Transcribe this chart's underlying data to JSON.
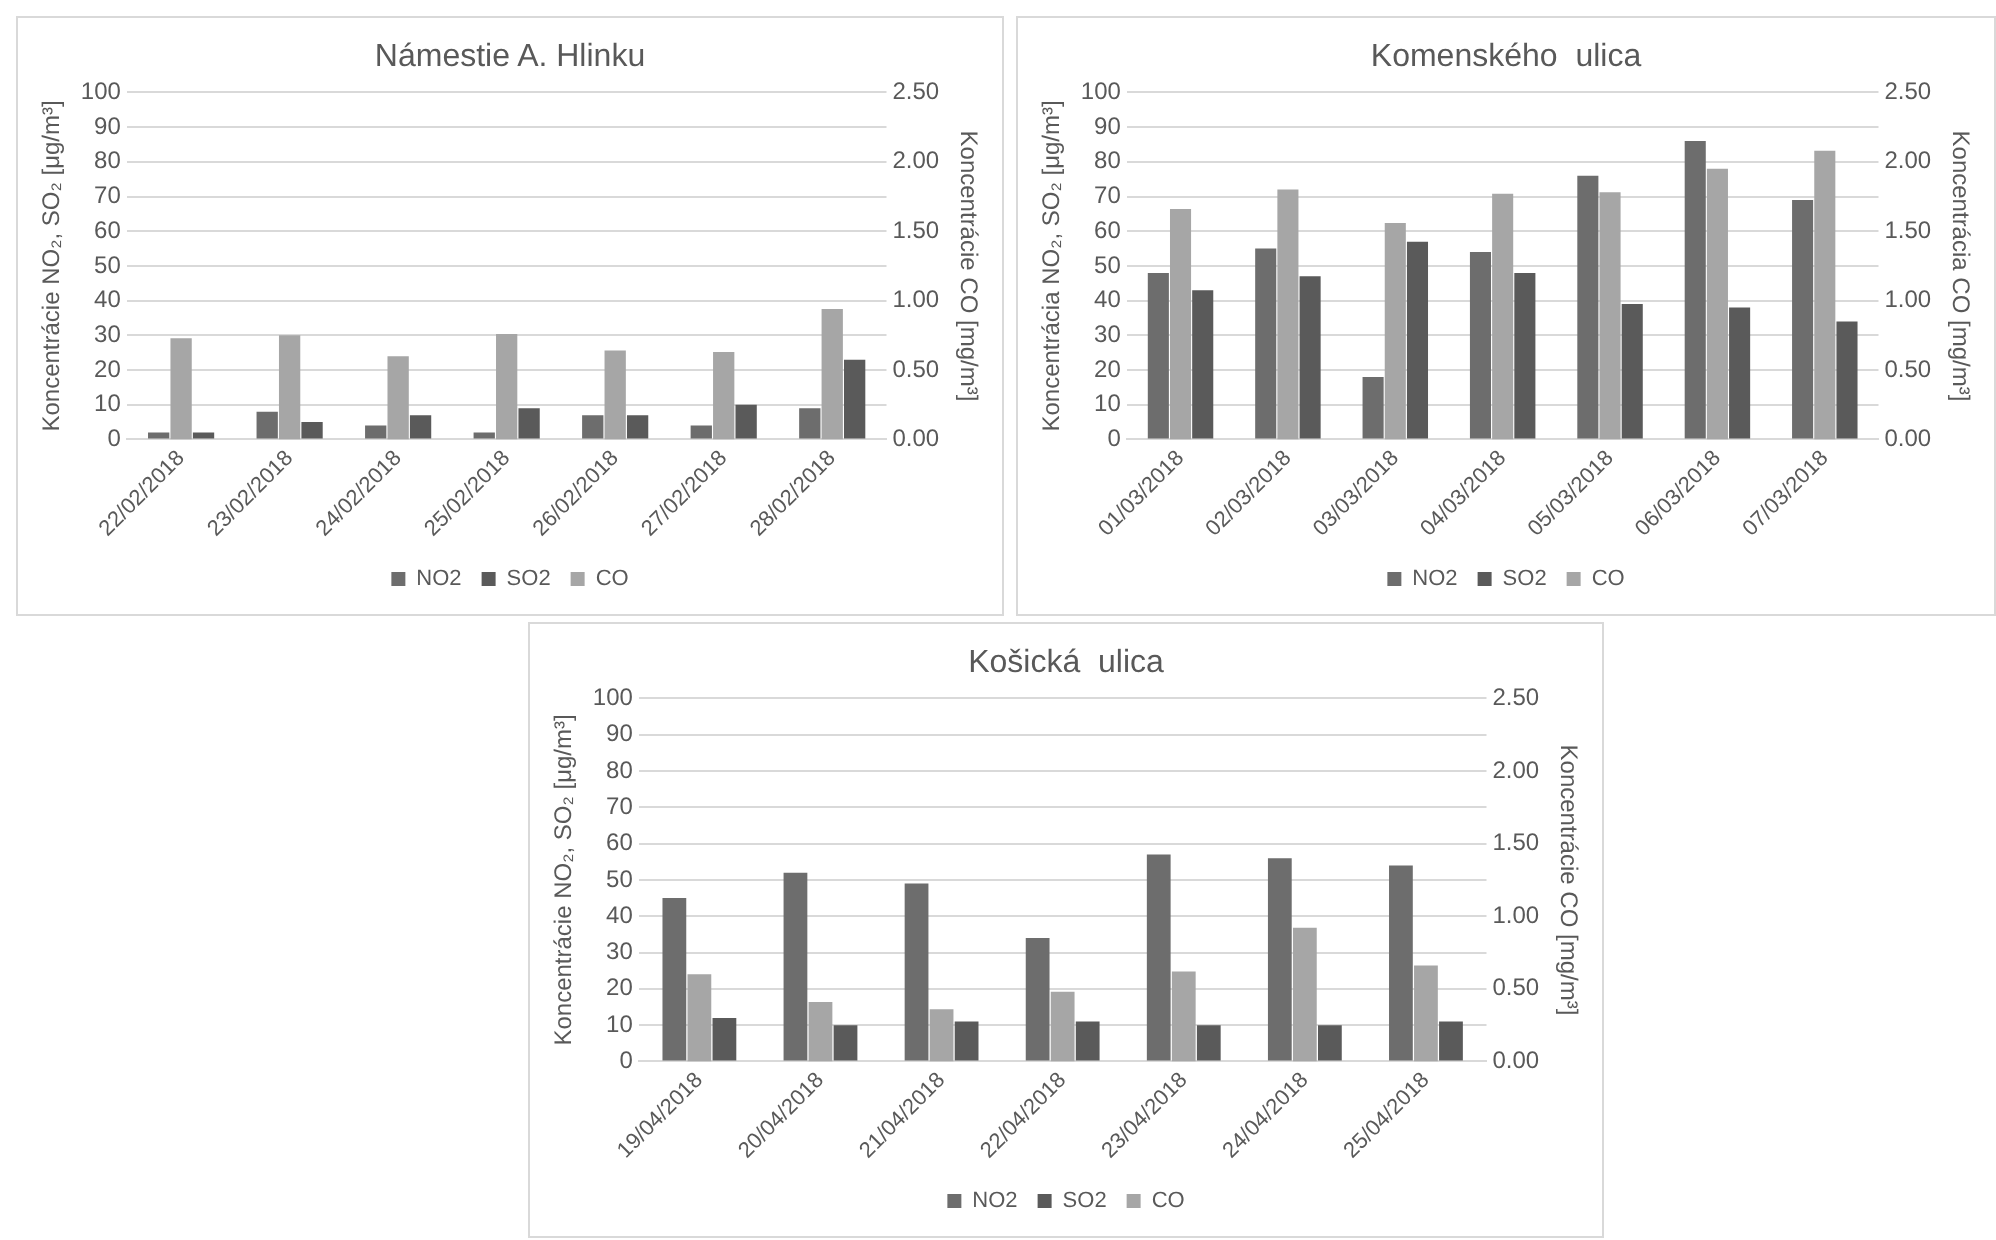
{
  "chart_data": [
    {
      "type": "bar",
      "title": "Námestie A. Hlinku",
      "ylabel": "Koncentrácie NO₂, SO₂ [μg/m³]",
      "y2label": "Koncentrácie CO [mg/m³]",
      "categories": [
        "22/02/2018",
        "23/02/2018",
        "24/02/2018",
        "25/02/2018",
        "26/02/2018",
        "27/02/2018",
        "28/02/2018"
      ],
      "series": [
        {
          "name": "NO2",
          "color": "#6d6d6d",
          "values": [
            2,
            8,
            4,
            2,
            7,
            4,
            9
          ]
        },
        {
          "name": "SO2",
          "color": "#5a5a5a",
          "values": [
            2,
            5,
            7,
            9,
            7,
            10,
            23
          ]
        },
        {
          "name": "CO",
          "color": "#a6a6a6",
          "axis": "y2",
          "values": [
            0.73,
            0.75,
            0.6,
            0.76,
            0.64,
            0.63,
            0.94
          ]
        }
      ],
      "ylim": [
        0,
        100
      ],
      "yticks": [
        0,
        10,
        20,
        30,
        40,
        50,
        60,
        70,
        80,
        90,
        100
      ],
      "y2lim": [
        0,
        2.5
      ],
      "y2ticks": [
        {
          "value": 0,
          "label": "0.00"
        },
        {
          "value": 0.5,
          "label": "0.50"
        },
        {
          "value": 1,
          "label": "1.00"
        },
        {
          "value": 1.5,
          "label": "1.50"
        },
        {
          "value": 2,
          "label": "2.00"
        },
        {
          "value": 2.5,
          "label": "2.50"
        }
      ],
      "grid": "y",
      "legend": "bottom"
    },
    {
      "type": "bar",
      "title": "Komenského  ulica",
      "ylabel": "Koncentrácia NO₂, SO₂ [μg/m³]",
      "y2label": "Koncentrácia CO [mg/m³]",
      "categories": [
        "01/03/2018",
        "02/03/2018",
        "03/03/2018",
        "04/03/2018",
        "05/03/2018",
        "06/03/2018",
        "07/03/2018"
      ],
      "series": [
        {
          "name": "NO2",
          "color": "#6d6d6d",
          "values": [
            48,
            55,
            18,
            54,
            76,
            86,
            69
          ]
        },
        {
          "name": "SO2",
          "color": "#5a5a5a",
          "values": [
            43,
            47,
            57,
            48,
            39,
            38,
            34
          ]
        },
        {
          "name": "CO",
          "color": "#a6a6a6",
          "axis": "y2",
          "values": [
            1.66,
            1.8,
            1.56,
            1.77,
            1.78,
            1.95,
            2.08
          ]
        }
      ],
      "ylim": [
        0,
        100
      ],
      "yticks": [
        0,
        10,
        20,
        30,
        40,
        50,
        60,
        70,
        80,
        90,
        100
      ],
      "y2lim": [
        0,
        2.5
      ],
      "y2ticks": [
        {
          "value": 0,
          "label": "0.00"
        },
        {
          "value": 0.5,
          "label": "0.50"
        },
        {
          "value": 1,
          "label": "1.00"
        },
        {
          "value": 1.5,
          "label": "1.50"
        },
        {
          "value": 2,
          "label": "2.00"
        },
        {
          "value": 2.5,
          "label": "2.50"
        }
      ],
      "grid": "y",
      "legend": "bottom"
    },
    {
      "type": "bar",
      "title": "Košická  ulica",
      "ylabel": "Koncentrácie NO₂, SO₂ [μg/m³]",
      "y2label": "Koncentrácie CO [mg/m³]",
      "categories": [
        "19/04/2018",
        "20/04/2018",
        "21/04/2018",
        "22/04/2018",
        "23/04/2018",
        "24/04/2018",
        "25/04/2018"
      ],
      "series": [
        {
          "name": "NO2",
          "color": "#6d6d6d",
          "values": [
            45,
            52,
            49,
            34,
            57,
            56,
            54
          ]
        },
        {
          "name": "SO2",
          "color": "#5a5a5a",
          "values": [
            12,
            10,
            11,
            11,
            10,
            10,
            11
          ]
        },
        {
          "name": "CO",
          "color": "#a6a6a6",
          "axis": "y2",
          "values": [
            0.6,
            0.41,
            0.36,
            0.48,
            0.62,
            0.92,
            0.66
          ]
        }
      ],
      "ylim": [
        0,
        100
      ],
      "yticks": [
        0,
        10,
        20,
        30,
        40,
        50,
        60,
        70,
        80,
        90,
        100
      ],
      "y2lim": [
        0,
        2.5
      ],
      "y2ticks": [
        {
          "value": 0,
          "label": "0.00"
        },
        {
          "value": 0.5,
          "label": "0.50"
        },
        {
          "value": 1,
          "label": "1.00"
        },
        {
          "value": 1.5,
          "label": "1.50"
        },
        {
          "value": 2,
          "label": "2.00"
        },
        {
          "value": 2.5,
          "label": "2.50"
        }
      ],
      "grid": "y",
      "legend": "bottom"
    }
  ]
}
